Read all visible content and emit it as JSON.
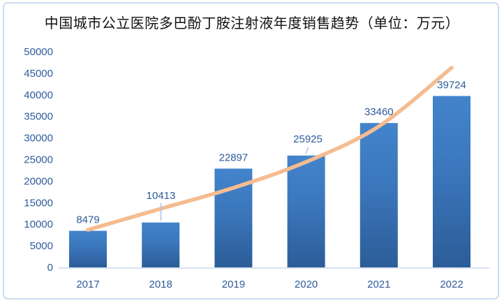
{
  "chart_data": {
    "type": "bar",
    "title": "中国城市公立医院多巴酚丁胺注射液年度销售趋势（单位：万元）",
    "categories": [
      "2017",
      "2018",
      "2019",
      "2020",
      "2021",
      "2022"
    ],
    "values": [
      8479,
      10413,
      22897,
      25925,
      33460,
      39724
    ],
    "data_labels": [
      "8479",
      "10413",
      "22897",
      "25925",
      "33460",
      "39724"
    ],
    "xlabel": "",
    "ylabel": "",
    "ylim": [
      0,
      50000
    ],
    "yticks": [
      0,
      5000,
      10000,
      15000,
      20000,
      25000,
      30000,
      35000,
      40000,
      45000,
      50000
    ],
    "grid": false,
    "legend": "none",
    "trendline": {
      "type": "smooth-exponential",
      "values": [
        8700,
        13600,
        18450,
        24450,
        32700,
        46280
      ]
    }
  },
  "colors": {
    "bar_gradient_top": "#4384CB",
    "bar_gradient_mid": "#3B76BB",
    "bar_gradient_bottom": "#2B5D98",
    "label_blue": "#2E5B9C",
    "axis_line": "#D9E2F2",
    "trendline": "#F5BC90",
    "leader_line": "#A9C5E8",
    "frame_border": "#CBDCF2",
    "title_color": "#111111"
  }
}
